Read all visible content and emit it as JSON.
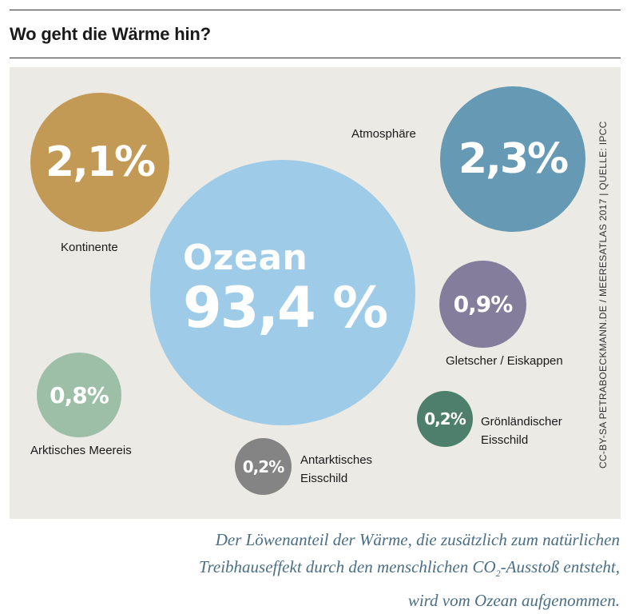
{
  "title": "Wo geht die Wärme hin?",
  "colors": {
    "ozean": "#9ecbe8",
    "kontinente": "#c39a55",
    "atmosphaere": "#6599b4",
    "gletscher": "#847e9c",
    "arktis": "#9dbfa8",
    "antarktis": "#848484",
    "groenland": "#4e7f6d",
    "background": "#eceae4"
  },
  "chart_data": {
    "type": "bubble",
    "title": "Wo geht die Wärme hin?",
    "unit": "%",
    "categories": [
      "Ozean",
      "Kontinente",
      "Atmosphäre",
      "Gletscher / Eiskappen",
      "Arktisches Meereis",
      "Antarktisches Eisschild",
      "Grönländischer Eisschild"
    ],
    "values": [
      93.4,
      2.1,
      2.3,
      0.9,
      0.8,
      0.2,
      0.2
    ],
    "value_labels": [
      "93,4 %",
      "2,1%",
      "2,3%",
      "0,9%",
      "0,8%",
      "0,2%",
      "0,2%"
    ],
    "ozean_label": "Ozean"
  },
  "labels": {
    "kontinente": "Kontinente",
    "atmosphaere": "Atmosphäre",
    "gletscher": "Gletscher / Eiskappen",
    "arktis": "Arktisches Meereis",
    "antarktis_1": "Antarktisches",
    "antarktis_2": "Eisschild",
    "groenland_1": "Grönländischer",
    "groenland_2": "Eisschild"
  },
  "source": "CC-BY-SA PETRABOECKMANN.DE / MEERESATLAS 2017 | QUELLE: IPCC",
  "caption": {
    "line1": "Der Löwenanteil der Wärme, die zusätzlich zum natürlichen",
    "line2_a": "Treibhauseffekt durch den menschlichen CO",
    "line2_sub": "2",
    "line2_b": "-Ausstoß entsteht,",
    "line3": "wird vom Ozean aufgenommen."
  }
}
